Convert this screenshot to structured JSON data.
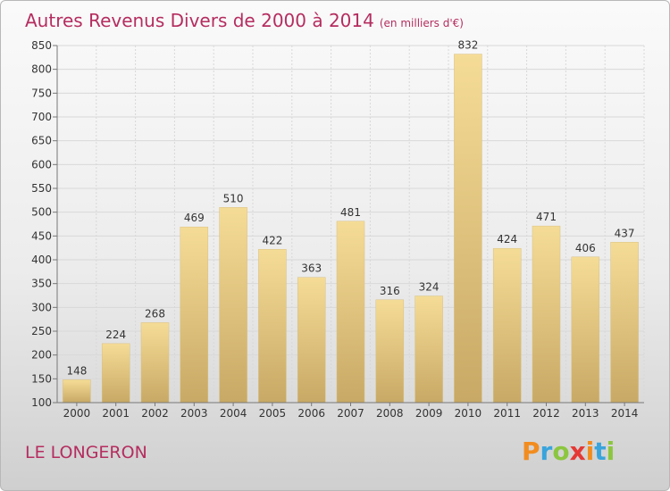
{
  "title": "Autres Revenus Divers de 2000 à 2014",
  "unit": "(en milliers d'€)",
  "location": "LE LONGERON",
  "logo": {
    "text": "Proxiti",
    "letters": [
      {
        "ch": "P",
        "color": "#f28c1e"
      },
      {
        "ch": "r",
        "color": "#3aa4dc"
      },
      {
        "ch": "o",
        "color": "#8cc63f"
      },
      {
        "ch": "x",
        "color": "#e53935"
      },
      {
        "ch": "i",
        "color": "#f28c1e"
      },
      {
        "ch": "t",
        "color": "#3aa4dc"
      },
      {
        "ch": "i",
        "color": "#8cc63f"
      }
    ]
  },
  "chart_data": {
    "type": "bar",
    "categories": [
      "2000",
      "2001",
      "2002",
      "2003",
      "2004",
      "2005",
      "2006",
      "2007",
      "2008",
      "2009",
      "2010",
      "2011",
      "2012",
      "2013",
      "2014"
    ],
    "values": [
      148,
      224,
      268,
      469,
      510,
      422,
      363,
      481,
      316,
      324,
      832,
      424,
      471,
      406,
      437
    ],
    "ylim": [
      100,
      850
    ],
    "yticks": [
      100,
      150,
      200,
      250,
      300,
      350,
      400,
      450,
      500,
      550,
      600,
      650,
      700,
      750,
      800,
      850
    ],
    "grid": true,
    "data_labels": true,
    "colors": {
      "bar_top": "#f5dc96",
      "bar_bottom": "#c8a965",
      "label": "#333333",
      "tick": "#333333",
      "grid": "#d8d8d8",
      "accent": "#b52d5f"
    }
  }
}
